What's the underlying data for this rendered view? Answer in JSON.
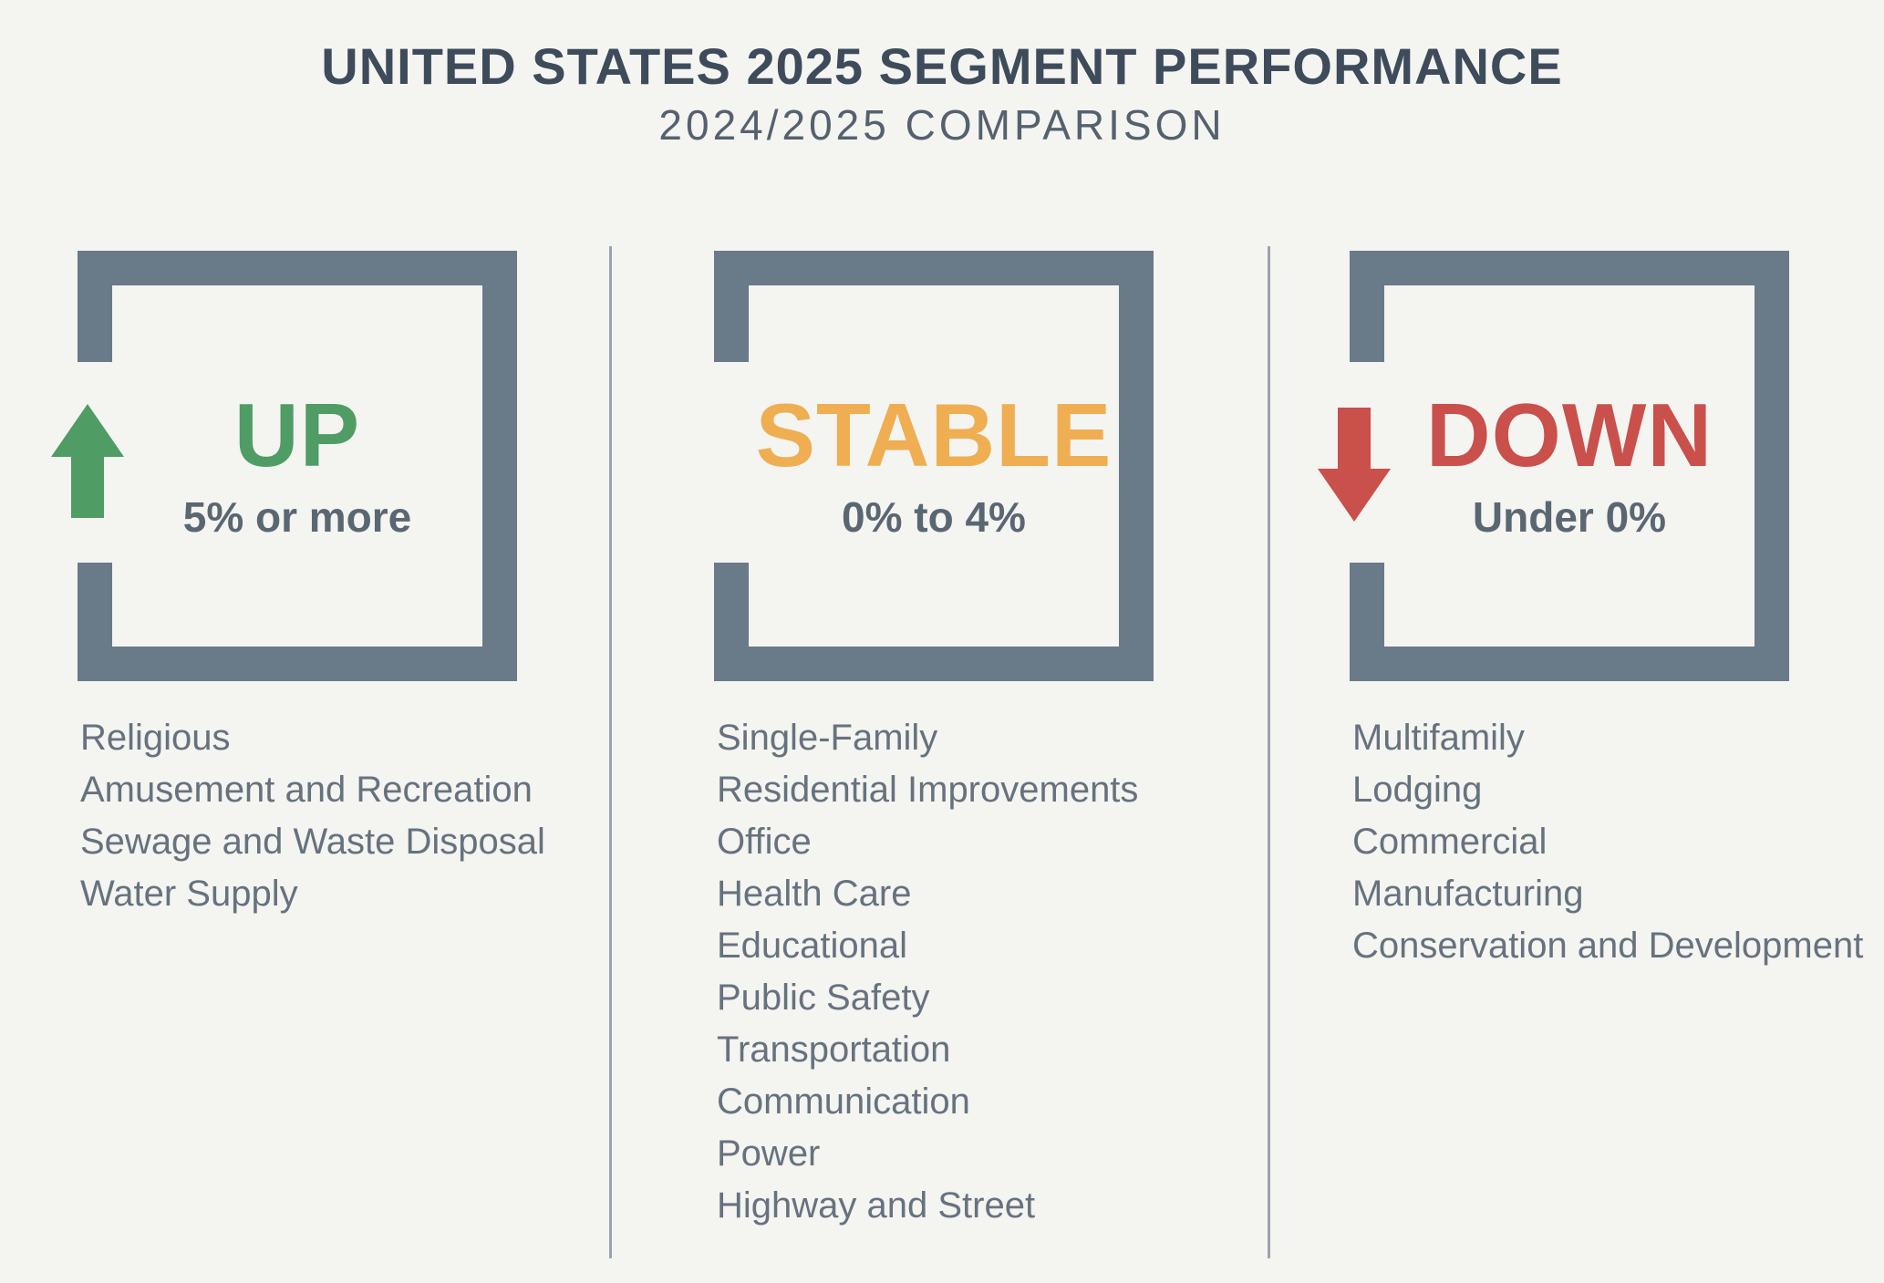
{
  "header": {
    "title": "UNITED STATES 2025 SEGMENT PERFORMANCE",
    "subtitle": "2024/2025 COMPARISON"
  },
  "columns": [
    {
      "id": "up",
      "label": "UP",
      "range": "5% or more",
      "arrow_icon": "up-arrow-icon",
      "accent": "#4f9c64",
      "items": [
        "Religious",
        "Amusement and Recreation",
        "Sewage and Waste Disposal",
        "Water Supply"
      ]
    },
    {
      "id": "stable",
      "label": "STABLE",
      "range": "0% to 4%",
      "arrow_icon": null,
      "accent": "#efae52",
      "items": [
        "Single-Family",
        "Residential Improvements",
        "Office",
        "Health Care",
        "Educational",
        "Public Safety",
        "Transportation",
        "Communication",
        "Power",
        "Highway and Street"
      ]
    },
    {
      "id": "down",
      "label": "DOWN",
      "range": "Under 0%",
      "arrow_icon": "down-arrow-icon",
      "accent": "#c9504b",
      "items": [
        "Multifamily",
        "Lodging",
        "Commercial",
        "Manufacturing",
        "Conservation and Development"
      ]
    }
  ],
  "colors": {
    "background": "#f4f4f1",
    "frame": "#697a89",
    "divider": "#9ba3ae",
    "title": "#3d4b5b",
    "subtitle": "#55616e",
    "range_text": "#5a6773",
    "list_text": "#66727e",
    "up_accent": "#4f9c64",
    "stable_accent": "#efae52",
    "down_accent": "#c9504b"
  }
}
